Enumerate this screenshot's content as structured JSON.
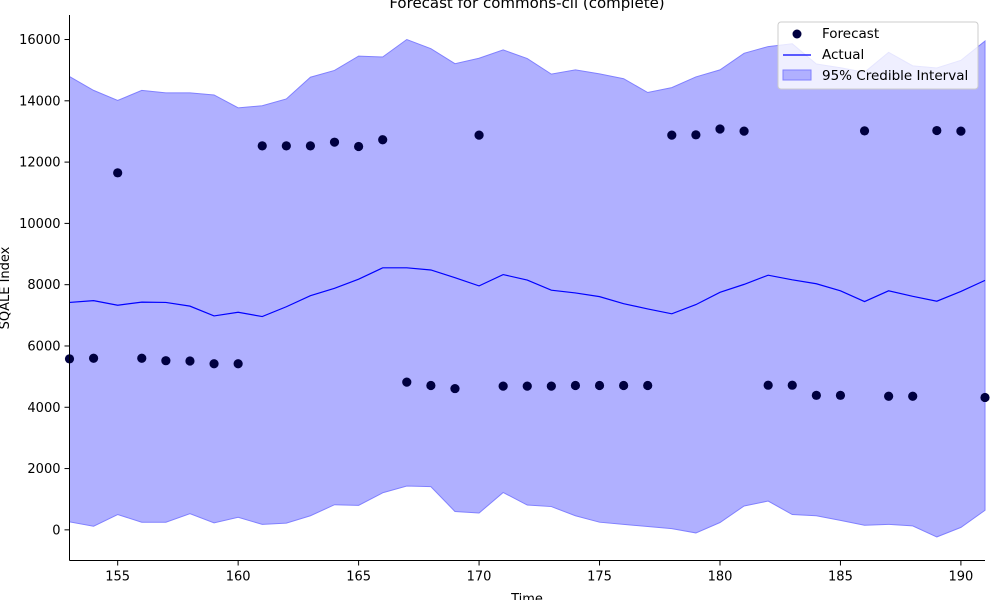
{
  "chart_data": {
    "type": "line",
    "title": "Forecast for commons-cli (complete)",
    "xlabel": "Time",
    "ylabel": "SQALE Index",
    "xlim": [
      153,
      191
    ],
    "ylim": [
      -1000,
      16800
    ],
    "xticks": [
      155,
      160,
      165,
      170,
      175,
      180,
      185,
      190
    ],
    "yticks": [
      0,
      2000,
      4000,
      6000,
      8000,
      10000,
      12000,
      14000,
      16000
    ],
    "legend_position": "top-right",
    "colors": {
      "forecast": "#000040",
      "actual": "#0000ff",
      "interval_fill": "#b0b0ff",
      "interval_edge": "#8080ff"
    },
    "legend": {
      "forecast_label": "Forecast",
      "actual_label": "Actual",
      "interval_label": "95% Credible Interval"
    },
    "x": [
      153,
      154,
      155,
      156,
      157,
      158,
      159,
      160,
      161,
      162,
      163,
      164,
      165,
      166,
      167,
      168,
      169,
      170,
      171,
      172,
      173,
      174,
      175,
      176,
      177,
      178,
      179,
      180,
      181,
      182,
      183,
      184,
      185,
      186,
      187,
      188,
      189,
      190,
      191
    ],
    "series": [
      {
        "name": "Actual",
        "values": [
          7420,
          7480,
          7330,
          7430,
          7420,
          7300,
          6980,
          7100,
          6960,
          7280,
          7640,
          7880,
          8180,
          8550,
          8550,
          8480,
          8230,
          7960,
          8330,
          8150,
          7820,
          7730,
          7610,
          7380,
          7210,
          7050,
          7350,
          7750,
          8010,
          8310,
          8160,
          8030,
          7800,
          7450,
          7800,
          7620,
          7460,
          7780,
          8140
        ]
      },
      {
        "name": "Forecast",
        "values": [
          5580,
          5600,
          11650,
          5600,
          5520,
          5510,
          5420,
          5420,
          12530,
          12530,
          12530,
          12650,
          12510,
          12730,
          4820,
          4710,
          4610,
          12880,
          4690,
          4690,
          4690,
          4710,
          4710,
          4710,
          4710,
          12880,
          12890,
          13080,
          13010,
          4720,
          4720,
          4390,
          4390,
          13020,
          4360,
          4360,
          13030,
          13010,
          4320
        ]
      },
      {
        "name": "95% Credible Interval",
        "lower": [
          260,
          120,
          500,
          250,
          250,
          530,
          230,
          410,
          180,
          220,
          460,
          820,
          800,
          1210,
          1430,
          1410,
          600,
          550,
          1220,
          810,
          760,
          460,
          250,
          180,
          110,
          40,
          -100,
          240,
          780,
          940,
          500,
          460,
          310,
          150,
          180,
          130,
          -230,
          80,
          640
        ],
        "upper": [
          14790,
          14340,
          14010,
          14340,
          14260,
          14260,
          14190,
          13770,
          13840,
          14060,
          14770,
          14990,
          15460,
          15430,
          16000,
          15700,
          15210,
          15390,
          15660,
          15380,
          14870,
          15010,
          14880,
          14720,
          14270,
          14430,
          14780,
          15010,
          15550,
          15770,
          15860,
          15200,
          15080,
          14930,
          15580,
          15140,
          15070,
          15320,
          15950
        ]
      }
    ]
  }
}
